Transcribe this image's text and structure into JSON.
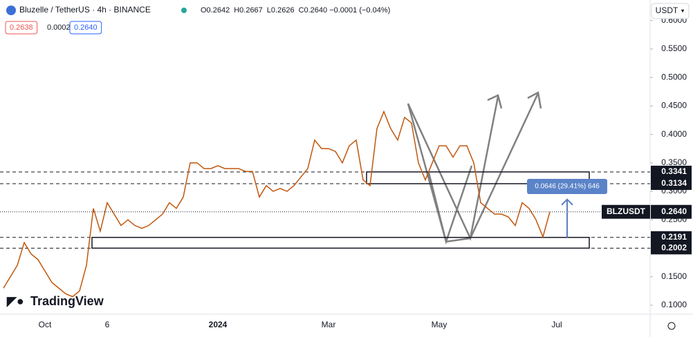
{
  "chart_data": {
    "type": "line",
    "title": "Bluzelle / TetherUS · 4h · BINANCE",
    "ohlc": [
      "O0.2642",
      "H0.2667",
      "L0.2626",
      "C0.2640 −0.0001 (−0.04%)"
    ],
    "bid_ask": [
      "0.2638",
      "0.0002",
      "0.2640"
    ],
    "currency": "USDT",
    "brand": "TradingView",
    "symbol": "BLZUSDT",
    "last_price": {
      "value": 0.264,
      "label": "0.2640"
    },
    "levels": [
      0.3341,
      0.3134,
      0.2191,
      0.2002
    ],
    "measure_label": "0.0646 (29.41%) 646",
    "color": "#c0560c",
    "grid": false,
    "ylim": [
      0.0842,
      0.636
    ],
    "yticks": [
      {
        "value": 0.1,
        "label": "0.1000"
      },
      {
        "value": 0.15,
        "label": "0.1500"
      },
      {
        "value": 0.2,
        "label": "0.2000"
      },
      {
        "value": 0.25,
        "label": "0.2500"
      },
      {
        "value": 0.3,
        "label": "0.3000"
      },
      {
        "value": 0.35,
        "label": "0.3500"
      },
      {
        "value": 0.4,
        "label": "0.4000"
      },
      {
        "value": 0.45,
        "label": "0.4500"
      },
      {
        "value": 0.5,
        "label": "0.5000"
      },
      {
        "value": 0.55,
        "label": "0.5500"
      },
      {
        "value": 0.6,
        "label": "0.6000"
      }
    ],
    "categories": [
      null,
      null,
      null,
      null,
      null,
      null,
      "Oct",
      null,
      null,
      null,
      null,
      null,
      null,
      null,
      null,
      "6",
      null,
      null,
      null,
      null,
      null,
      null,
      null,
      null,
      null,
      null,
      null,
      null,
      null,
      null,
      null,
      "2024",
      null,
      null,
      null,
      null,
      null,
      null,
      null,
      null,
      null,
      null,
      null,
      null,
      null,
      null,
      null,
      "Mar",
      null,
      null,
      null,
      null,
      null,
      null,
      null,
      null,
      null,
      null,
      null,
      null,
      null,
      null,
      null,
      "May",
      null,
      null,
      null,
      null,
      null,
      null,
      null,
      null,
      null,
      null,
      null,
      null,
      null,
      null,
      null,
      null,
      "Jul",
      null,
      null,
      null,
      null,
      null,
      null,
      null,
      null,
      null,
      null,
      null,
      null,
      null
    ],
    "values": [
      0.13,
      0.15,
      0.17,
      0.21,
      0.19,
      0.18,
      0.16,
      0.14,
      0.13,
      0.12,
      0.115,
      0.125,
      0.17,
      0.27,
      0.23,
      0.28,
      0.26,
      0.24,
      0.25,
      0.24,
      0.235,
      0.24,
      0.25,
      0.26,
      0.28,
      0.27,
      0.29,
      0.35,
      0.35,
      0.34,
      0.34,
      0.345,
      0.34,
      0.34,
      0.34,
      0.335,
      0.335,
      0.29,
      0.31,
      0.3,
      0.305,
      0.3,
      0.31,
      0.325,
      0.34,
      0.39,
      0.375,
      0.375,
      0.37,
      0.35,
      0.38,
      0.39,
      0.32,
      0.31,
      0.41,
      0.44,
      0.41,
      0.39,
      0.43,
      0.42,
      0.35,
      0.32,
      0.35,
      0.38,
      0.38,
      0.36,
      0.38,
      0.38,
      0.35,
      0.28,
      0.27,
      0.26,
      0.26,
      0.255,
      0.24,
      0.28,
      0.27,
      0.25,
      0.22,
      0.264,
      null,
      null,
      null,
      null,
      null,
      null,
      null,
      null,
      null,
      null,
      null,
      null,
      null,
      null
    ]
  }
}
